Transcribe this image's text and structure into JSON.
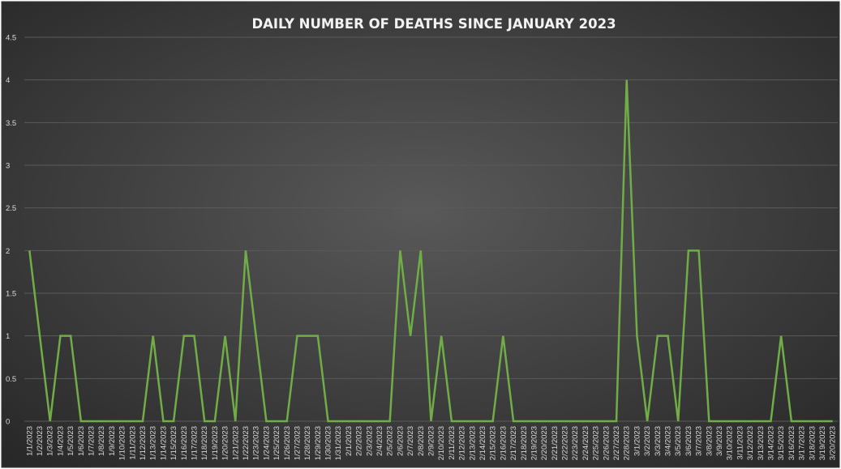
{
  "chart_data": {
    "type": "line",
    "title": "DAILY NUMBER OF DEATHS SINCE JANUARY 2023",
    "xlabel": "",
    "ylabel": "",
    "ylim": [
      0,
      4.5
    ],
    "yticks": [
      "0",
      "0.5",
      "1",
      "1.5",
      "2",
      "2.5",
      "3",
      "3.5",
      "4",
      "4.5"
    ],
    "grid": true,
    "legend": "none",
    "categories": [
      "1/1/2023",
      "1/2/2023",
      "1/3/2023",
      "1/4/2023",
      "1/5/2023",
      "1/6/2023",
      "1/7/2023",
      "1/8/2023",
      "1/9/2023",
      "1/10/2023",
      "1/11/2023",
      "1/12/2023",
      "1/13/2023",
      "1/14/2023",
      "1/15/2023",
      "1/16/2023",
      "1/17/2023",
      "1/18/2023",
      "1/19/2023",
      "1/20/2023",
      "1/21/2023",
      "1/22/2023",
      "1/23/2023",
      "1/24/2023",
      "1/25/2023",
      "1/26/2023",
      "1/27/2023",
      "1/28/2023",
      "1/29/2023",
      "1/30/2023",
      "1/31/2023",
      "2/1/2023",
      "2/2/2023",
      "2/3/2023",
      "2/4/2023",
      "2/5/2023",
      "2/6/2023",
      "2/7/2023",
      "2/8/2023",
      "2/9/2023",
      "2/10/2023",
      "2/11/2023",
      "2/12/2023",
      "2/13/2023",
      "2/14/2023",
      "2/15/2023",
      "2/16/2023",
      "2/17/2023",
      "2/18/2023",
      "2/19/2023",
      "2/20/2023",
      "2/21/2023",
      "2/22/2023",
      "2/23/2023",
      "2/24/2023",
      "2/25/2023",
      "2/26/2023",
      "2/27/2023",
      "2/28/2023",
      "3/1/2023",
      "3/2/2023",
      "3/3/2023",
      "3/4/2023",
      "3/5/2023",
      "3/6/2023",
      "3/7/2023",
      "3/8/2023",
      "3/9/2023",
      "3/10/2023",
      "3/11/2023",
      "3/12/2023",
      "3/13/2023",
      "3/14/2023",
      "3/15/2023",
      "3/16/2023",
      "3/17/2023",
      "3/18/2023",
      "3/19/2023",
      "3/20/2023"
    ],
    "series": [
      {
        "values": [
          2,
          1,
          0,
          1,
          1,
          0,
          0,
          0,
          0,
          0,
          0,
          0,
          1,
          0,
          0,
          1,
          1,
          0,
          0,
          1,
          0,
          2,
          1,
          0,
          0,
          0,
          1,
          1,
          1,
          0,
          0,
          0,
          0,
          0,
          0,
          0,
          2,
          1,
          2,
          0,
          1,
          0,
          0,
          0,
          0,
          0,
          1,
          0,
          0,
          0,
          0,
          0,
          0,
          0,
          0,
          0,
          0,
          0,
          4,
          1,
          0,
          1,
          1,
          0,
          2,
          2,
          0,
          0,
          0,
          0,
          0,
          0,
          0,
          1,
          0,
          0,
          0,
          0,
          0
        ]
      }
    ],
    "colors": {
      "line": "#70ad47",
      "gridline": "#5a5a5a",
      "text": "#d9d9d9",
      "title": "#f2f2f2",
      "bg_center": "#595959",
      "bg_edge": "#262626"
    }
  }
}
